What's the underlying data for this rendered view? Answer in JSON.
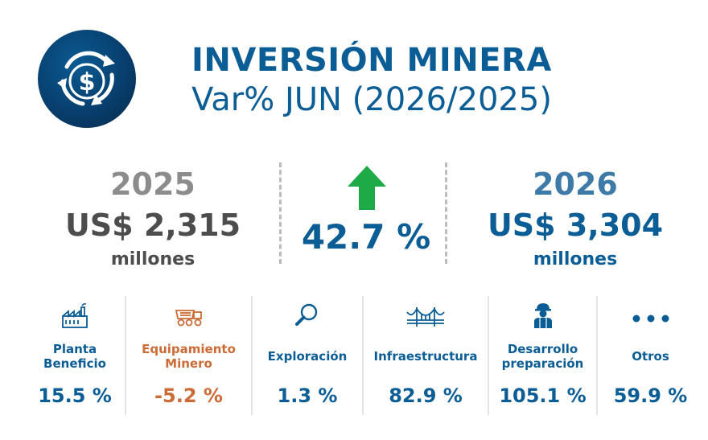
{
  "header": {
    "title": "INVERSIÓN MINERA",
    "subtitle": "Var% JUN (2026/2025)"
  },
  "summary": {
    "previous": {
      "year": "2025",
      "amount": "US$ 2,315",
      "unit": "millones"
    },
    "variation": "42.7 %",
    "current": {
      "year": "2026",
      "amount": "US$ 3,304",
      "unit": "millones"
    }
  },
  "categories": [
    {
      "label_line1": "Planta",
      "label_line2": "Beneficio",
      "value": "15.5 %",
      "icon": "factory-icon"
    },
    {
      "label_line1": "Equipamiento",
      "label_line2": "Minero",
      "value": "-5.2 %",
      "icon": "mining-truck-icon"
    },
    {
      "label_line1": "Exploración",
      "label_line2": "",
      "value": "1.3 %",
      "icon": "magnifier-icon"
    },
    {
      "label_line1": "Infraestructura",
      "label_line2": "",
      "value": "82.9 %",
      "icon": "bridge-icon"
    },
    {
      "label_line1": "Desarrollo",
      "label_line2": "preparación",
      "value": "105.1 %",
      "icon": "miner-worker-icon"
    },
    {
      "label_line1": "Otros",
      "label_line2": "",
      "value": "59.9 %",
      "icon": "ellipsis-icon"
    }
  ],
  "colors": {
    "primary_blue": "#0b5d96",
    "gray_text": "#4d4d4d",
    "gray_year": "#8c8c8c",
    "current_year_blue": "#3d7aa8",
    "negative_orange": "#cc6b35",
    "arrow_green": "#1faa48"
  }
}
